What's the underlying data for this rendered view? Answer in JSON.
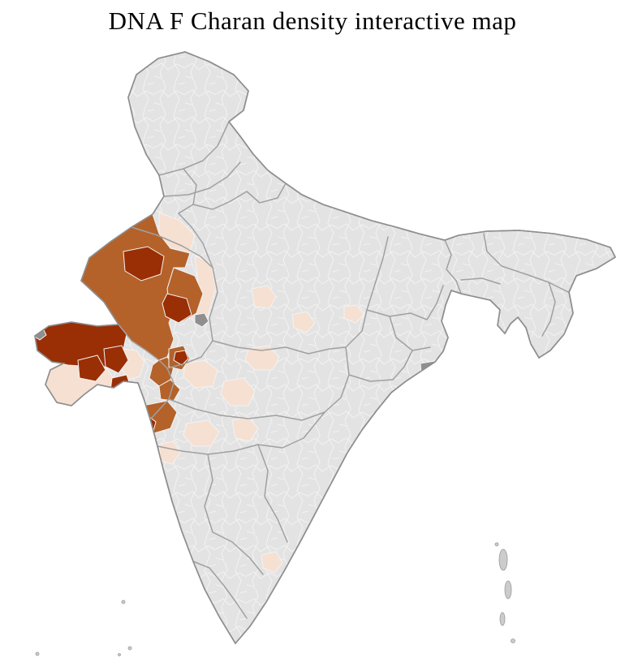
{
  "title": "DNA F Charan density interactive map",
  "map": {
    "name": "India district-level density choropleth",
    "palette": {
      "none": "#e3e3e3",
      "low": "#f6e0d2",
      "medium": "#b4622a",
      "high": "#9a2e05",
      "special": "#8f8f8f",
      "island": "#cccccc"
    }
  }
}
